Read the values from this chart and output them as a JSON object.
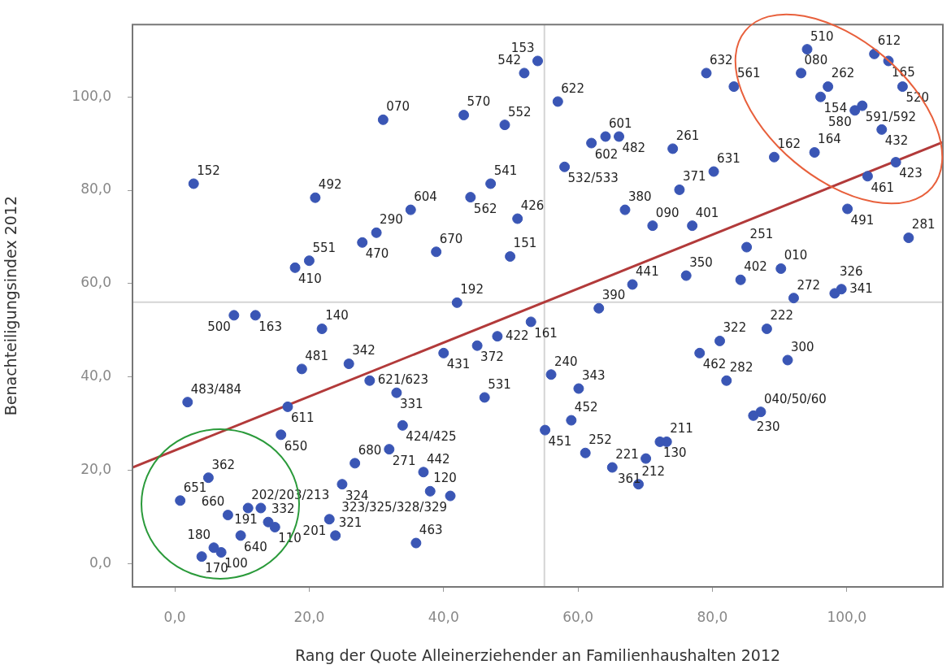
{
  "chart_data": {
    "type": "scatter",
    "xlabel": "Rang der Quote Alleinerziehender an Familienhaushalten 2012",
    "ylabel": "Benachteiligungsindex 2012",
    "xlim": [
      -6.3,
      114.3
    ],
    "ylim": [
      -5,
      115.5
    ],
    "xticks": [
      {
        "value": 0,
        "label": "0,0"
      },
      {
        "value": 20,
        "label": "20,0"
      },
      {
        "value": 40,
        "label": "40,0"
      },
      {
        "value": 60,
        "label": "60,0"
      },
      {
        "value": 80,
        "label": "80,0"
      },
      {
        "value": 100,
        "label": "100,0"
      }
    ],
    "yticks": [
      {
        "value": 0,
        "label": "0,0"
      },
      {
        "value": 20,
        "label": "20,0"
      },
      {
        "value": 40,
        "label": "40,0"
      },
      {
        "value": 60,
        "label": "60,0"
      },
      {
        "value": 80,
        "label": "80,0"
      },
      {
        "value": 100,
        "label": "100,0"
      }
    ],
    "marker": "circle",
    "legend": false,
    "ref_lines": [
      {
        "axis": "x",
        "value": 55,
        "color": "#d4d4d4"
      },
      {
        "axis": "y",
        "value": 56,
        "color": "#d4d4d4"
      }
    ],
    "series": [
      {
        "type": "scatter",
        "color": "#3a56b5",
        "x": [
          2.8,
          31.0,
          20.9,
          27.9,
          30.0,
          20.0,
          17.9,
          12.0,
          8.8,
          21.9,
          25.9,
          18.9,
          29.0,
          33.0,
          33.9,
          1.9,
          16.8,
          15.8,
          5.0,
          0.8,
          7.9,
          10.9,
          12.8,
          13.9,
          14.9,
          9.8,
          4.0,
          5.8,
          6.9,
          24.9,
          26.8,
          23.0,
          23.9,
          31.9,
          35.9,
          37.0,
          38.0,
          41.0,
          40.0,
          45.0,
          48.0,
          53.0,
          42.0,
          46.1,
          56.0,
          60.1,
          59.0,
          55.1,
          61.1,
          65.1,
          69.0,
          73.2,
          72.2,
          70.1,
          63.1,
          68.1,
          67.0,
          71.1,
          77.0,
          75.1,
          80.2,
          74.1,
          64.1,
          66.1,
          62.0,
          58.0,
          57.0,
          52.0,
          54.0,
          43.0,
          49.1,
          47.0,
          35.1,
          44.0,
          51.0,
          38.9,
          49.9,
          109.2,
          85.1,
          76.1,
          84.2,
          90.2,
          92.1,
          98.2,
          99.2,
          81.1,
          78.1,
          82.1,
          88.1,
          91.2,
          87.2,
          86.1,
          79.1,
          83.2,
          94.1,
          93.2,
          97.2,
          96.1,
          104.1,
          106.2,
          108.3,
          102.3,
          101.2,
          105.2,
          89.2,
          95.2,
          107.3,
          103.1,
          100.1
        ],
        "values": [
          81.4,
          95.1,
          78.4,
          68.8,
          70.9,
          64.9,
          63.4,
          53.2,
          53.2,
          50.3,
          42.8,
          41.7,
          39.2,
          36.6,
          29.6,
          34.6,
          33.6,
          27.6,
          18.4,
          13.5,
          10.4,
          11.9,
          11.9,
          8.9,
          7.8,
          6.0,
          1.5,
          3.4,
          2.4,
          17.0,
          21.5,
          9.5,
          6.0,
          24.5,
          4.4,
          19.6,
          15.5,
          14.5,
          45.1,
          46.7,
          48.7,
          51.8,
          55.9,
          35.6,
          40.5,
          37.5,
          30.7,
          28.6,
          23.7,
          20.6,
          17.0,
          26.1,
          26.1,
          22.5,
          54.7,
          59.8,
          75.8,
          72.4,
          72.4,
          80.1,
          84.0,
          88.9,
          91.5,
          91.5,
          90.1,
          85.0,
          99.0,
          105.1,
          107.7,
          96.1,
          94.0,
          81.4,
          75.8,
          78.5,
          73.9,
          66.8,
          65.8,
          69.8,
          67.8,
          61.7,
          60.8,
          63.2,
          56.9,
          57.9,
          58.8,
          47.7,
          45.1,
          39.2,
          50.3,
          43.6,
          32.5,
          31.7,
          105.1,
          102.2,
          110.2,
          105.1,
          102.2,
          100.0,
          109.2,
          107.7,
          102.2,
          98.1,
          97.1,
          93.0,
          87.1,
          88.1,
          86.0,
          83.0,
          76.0
        ]
      },
      {
        "type": "line",
        "color": "#b23a3a",
        "marker": "none",
        "x": [
          -6.3,
          114.3
        ],
        "values": [
          20.6,
          90.3
        ]
      }
    ],
    "annotations": [
      {
        "text": "152",
        "x": 2.8,
        "y": 81.4
      },
      {
        "text": "070",
        "x": 31.0,
        "y": 95.1
      },
      {
        "text": "492",
        "x": 20.9,
        "y": 78.4
      },
      {
        "text": "470",
        "x": 27.9,
        "y": 68.8
      },
      {
        "text": "290",
        "x": 30.0,
        "y": 70.9
      },
      {
        "text": "551",
        "x": 20.0,
        "y": 64.9
      },
      {
        "text": "410",
        "x": 17.9,
        "y": 63.4
      },
      {
        "text": "163",
        "x": 12.0,
        "y": 53.2
      },
      {
        "text": "500",
        "x": 8.8,
        "y": 53.2
      },
      {
        "text": "140",
        "x": 21.9,
        "y": 50.3
      },
      {
        "text": "342",
        "x": 25.9,
        "y": 42.8
      },
      {
        "text": "481",
        "x": 18.9,
        "y": 41.7
      },
      {
        "text": "621/623",
        "x": 29.0,
        "y": 39.2
      },
      {
        "text": "331",
        "x": 33.0,
        "y": 36.6
      },
      {
        "text": "424/425",
        "x": 33.9,
        "y": 29.6
      },
      {
        "text": "483/484",
        "x": 1.9,
        "y": 34.6
      },
      {
        "text": "611",
        "x": 16.8,
        "y": 33.6
      },
      {
        "text": "650",
        "x": 15.8,
        "y": 27.6
      },
      {
        "text": "362",
        "x": 5.0,
        "y": 18.4
      },
      {
        "text": "651",
        "x": 0.8,
        "y": 13.5
      },
      {
        "text": "660",
        "x": 7.9,
        "y": 10.4
      },
      {
        "text": "202/203/213",
        "x": 10.9,
        "y": 11.9
      },
      {
        "text": "191",
        "x": 12.8,
        "y": 11.9
      },
      {
        "text": "332",
        "x": 13.9,
        "y": 8.9
      },
      {
        "text": "110",
        "x": 14.9,
        "y": 7.8
      },
      {
        "text": "640",
        "x": 9.8,
        "y": 6.0
      },
      {
        "text": "170",
        "x": 4.0,
        "y": 1.5
      },
      {
        "text": "180",
        "x": 5.8,
        "y": 3.4
      },
      {
        "text": "100",
        "x": 6.9,
        "y": 2.4
      },
      {
        "text": "324",
        "x": 24.9,
        "y": 17.0
      },
      {
        "text": "680",
        "x": 26.8,
        "y": 21.5
      },
      {
        "text": "201",
        "x": 23.0,
        "y": 9.5
      },
      {
        "text": "321",
        "x": 23.9,
        "y": 6.0
      },
      {
        "text": "271",
        "x": 31.9,
        "y": 24.5
      },
      {
        "text": "463",
        "x": 35.9,
        "y": 4.4
      },
      {
        "text": "442",
        "x": 37.0,
        "y": 19.6
      },
      {
        "text": "120",
        "x": 38.0,
        "y": 15.5
      },
      {
        "text": "323/325/328/329",
        "x": 41.0,
        "y": 14.5
      },
      {
        "text": "431",
        "x": 40.0,
        "y": 45.1
      },
      {
        "text": "372",
        "x": 45.0,
        "y": 46.7
      },
      {
        "text": "422",
        "x": 48.0,
        "y": 48.7
      },
      {
        "text": "161",
        "x": 53.0,
        "y": 51.8
      },
      {
        "text": "192",
        "x": 42.0,
        "y": 55.9
      },
      {
        "text": "531",
        "x": 46.1,
        "y": 35.6
      },
      {
        "text": "240",
        "x": 56.0,
        "y": 40.5
      },
      {
        "text": "343",
        "x": 60.1,
        "y": 37.5
      },
      {
        "text": "452",
        "x": 59.0,
        "y": 30.7
      },
      {
        "text": "451",
        "x": 55.1,
        "y": 28.6
      },
      {
        "text": "252",
        "x": 61.1,
        "y": 23.7
      },
      {
        "text": "221",
        "x": 65.1,
        "y": 20.6
      },
      {
        "text": "212",
        "x": 69.0,
        "y": 17.0
      },
      {
        "text": "211",
        "x": 73.2,
        "y": 26.1
      },
      {
        "text": "130",
        "x": 72.2,
        "y": 26.1
      },
      {
        "text": "361",
        "x": 70.1,
        "y": 22.5
      },
      {
        "text": "390",
        "x": 63.1,
        "y": 54.7
      },
      {
        "text": "441",
        "x": 68.1,
        "y": 59.8
      },
      {
        "text": "380",
        "x": 67.0,
        "y": 75.8
      },
      {
        "text": "090",
        "x": 71.1,
        "y": 72.4
      },
      {
        "text": "401",
        "x": 77.0,
        "y": 72.4
      },
      {
        "text": "371",
        "x": 75.1,
        "y": 80.1
      },
      {
        "text": "631",
        "x": 80.2,
        "y": 84.0
      },
      {
        "text": "261",
        "x": 74.1,
        "y": 88.9
      },
      {
        "text": "601",
        "x": 64.1,
        "y": 91.5
      },
      {
        "text": "482",
        "x": 66.1,
        "y": 91.5
      },
      {
        "text": "602",
        "x": 62.0,
        "y": 90.1
      },
      {
        "text": "532/533",
        "x": 58.0,
        "y": 85.0
      },
      {
        "text": "622",
        "x": 57.0,
        "y": 99.0
      },
      {
        "text": "542",
        "x": 52.0,
        "y": 105.1
      },
      {
        "text": "153",
        "x": 54.0,
        "y": 107.7
      },
      {
        "text": "570",
        "x": 43.0,
        "y": 96.1
      },
      {
        "text": "552",
        "x": 49.1,
        "y": 94.0
      },
      {
        "text": "541",
        "x": 47.0,
        "y": 81.4
      },
      {
        "text": "604",
        "x": 35.1,
        "y": 75.8
      },
      {
        "text": "562",
        "x": 44.0,
        "y": 78.5
      },
      {
        "text": "426",
        "x": 51.0,
        "y": 73.9
      },
      {
        "text": "670",
        "x": 38.9,
        "y": 66.8
      },
      {
        "text": "151",
        "x": 49.9,
        "y": 65.8
      },
      {
        "text": "281",
        "x": 109.2,
        "y": 69.8
      },
      {
        "text": "251",
        "x": 85.1,
        "y": 67.8
      },
      {
        "text": "350",
        "x": 76.1,
        "y": 61.7
      },
      {
        "text": "402",
        "x": 84.2,
        "y": 60.8
      },
      {
        "text": "010",
        "x": 90.2,
        "y": 63.2
      },
      {
        "text": "272",
        "x": 92.1,
        "y": 56.9
      },
      {
        "text": "326",
        "x": 98.2,
        "y": 57.9
      },
      {
        "text": "341",
        "x": 99.2,
        "y": 58.8
      },
      {
        "text": "322",
        "x": 81.1,
        "y": 47.7
      },
      {
        "text": "462",
        "x": 78.1,
        "y": 45.1
      },
      {
        "text": "282",
        "x": 82.1,
        "y": 39.2
      },
      {
        "text": "222",
        "x": 88.1,
        "y": 50.3
      },
      {
        "text": "300",
        "x": 91.2,
        "y": 43.6
      },
      {
        "text": "040/50/60",
        "x": 87.2,
        "y": 32.5
      },
      {
        "text": "230",
        "x": 86.1,
        "y": 31.7
      },
      {
        "text": "632",
        "x": 79.1,
        "y": 105.1
      },
      {
        "text": "561",
        "x": 83.2,
        "y": 102.2
      },
      {
        "text": "510",
        "x": 94.1,
        "y": 110.2
      },
      {
        "text": "080",
        "x": 93.2,
        "y": 105.1
      },
      {
        "text": "262",
        "x": 97.2,
        "y": 102.2
      },
      {
        "text": "154",
        "x": 96.1,
        "y": 100.0
      },
      {
        "text": "612",
        "x": 104.1,
        "y": 109.2
      },
      {
        "text": "165",
        "x": 106.2,
        "y": 107.7
      },
      {
        "text": "520",
        "x": 108.3,
        "y": 102.2
      },
      {
        "text": "591/592",
        "x": 102.3,
        "y": 98.1
      },
      {
        "text": "580",
        "x": 101.2,
        "y": 97.1
      },
      {
        "text": "432",
        "x": 105.2,
        "y": 93.0
      },
      {
        "text": "162",
        "x": 89.2,
        "y": 87.1
      },
      {
        "text": "164",
        "x": 95.2,
        "y": 88.1
      },
      {
        "text": "423",
        "x": 107.3,
        "y": 86.0
      },
      {
        "text": "461",
        "x": 103.1,
        "y": 83.0
      },
      {
        "text": "491",
        "x": 100.1,
        "y": 76.0
      }
    ]
  }
}
